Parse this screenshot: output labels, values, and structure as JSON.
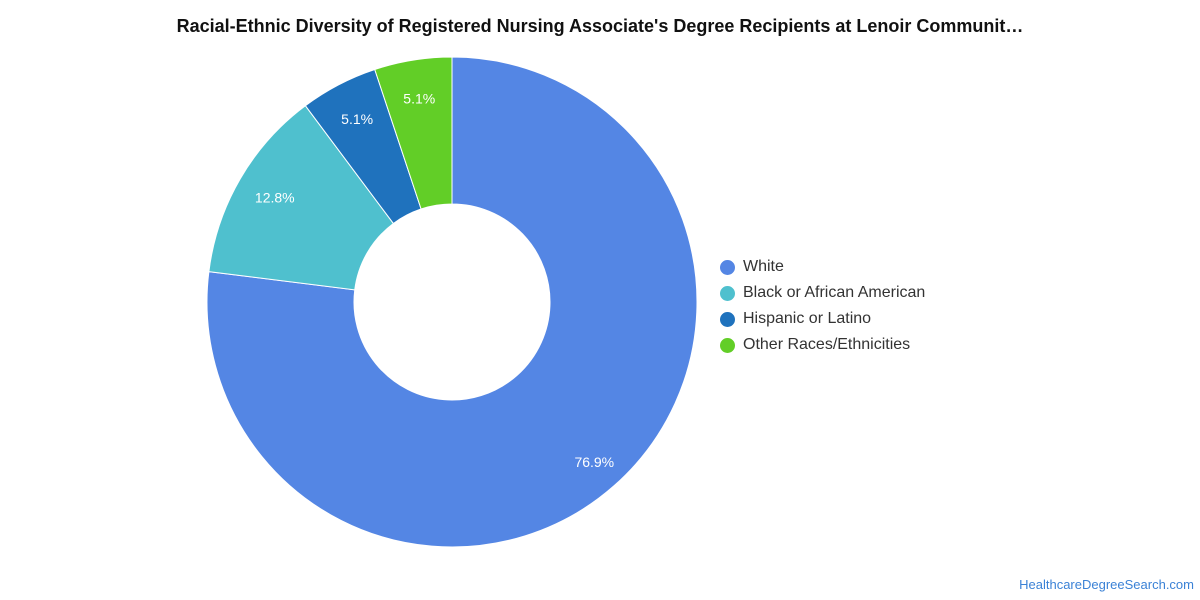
{
  "chart_data": {
    "type": "pie",
    "title": "Racial-Ethnic Diversity of Registered Nursing Associate's Degree Recipients at Lenoir Communit…",
    "donut": true,
    "legend_position": "right",
    "slices": [
      {
        "label": "White",
        "value": 76.9,
        "display": "76.9%",
        "color": "#5486e4"
      },
      {
        "label": "Black or African American",
        "value": 12.8,
        "display": "12.8%",
        "color": "#4fc0ce"
      },
      {
        "label": "Hispanic or Latino",
        "value": 5.1,
        "display": "5.1%",
        "color": "#1f72bd"
      },
      {
        "label": "Other Races/Ethnicities",
        "value": 5.1,
        "display": "5.1%",
        "color": "#62ce27"
      }
    ]
  },
  "watermark": "HealthcareDegreeSearch.com"
}
